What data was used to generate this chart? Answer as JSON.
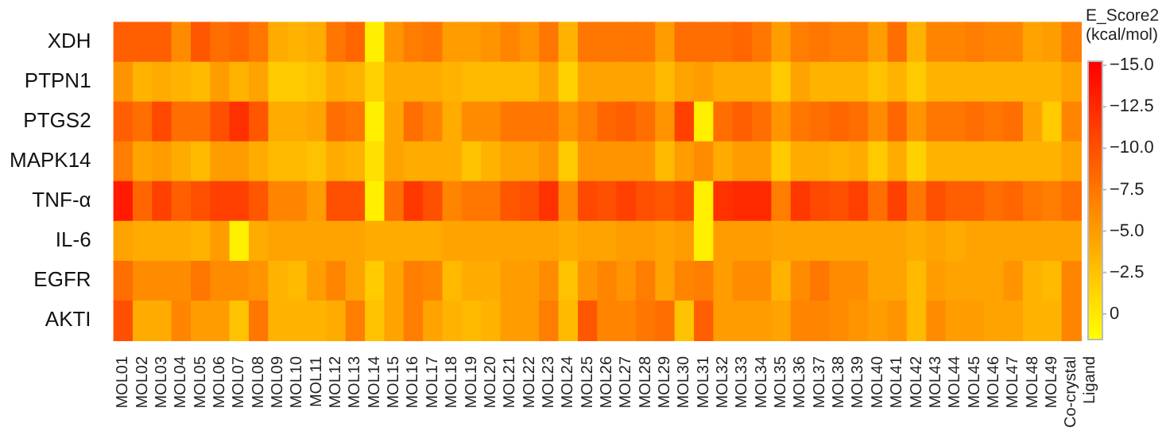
{
  "chart_data": {
    "type": "heatmap",
    "clabel": "E_Score2 (kcal/mol)",
    "categories": [
      "MOL01",
      "MOL02",
      "MOL03",
      "MOL04",
      "MOL05",
      "MOL06",
      "MOL07",
      "MOL08",
      "MOL09",
      "MOL10",
      "MOL11",
      "MOL12",
      "MOL13",
      "MOL14",
      "MOL15",
      "MOL16",
      "MOL17",
      "MOL18",
      "MOL19",
      "MOL20",
      "MOL21",
      "MOL22",
      "MOL23",
      "MOL24",
      "MOL25",
      "MOL26",
      "MOL27",
      "MOL28",
      "MOL29",
      "MOL30",
      "MOL31",
      "MOL32",
      "MOL33",
      "MOL34",
      "MOL35",
      "MOL36",
      "MOL37",
      "MOL38",
      "MOL39",
      "MOL40",
      "MOL41",
      "MOL42",
      "MOL43",
      "MOL44",
      "MOL45",
      "MOL46",
      "MOL47",
      "MOL48",
      "MOL49",
      "Co-crystal Ligand"
    ],
    "y_categories": [
      "XDH",
      "PTPN1",
      "PTGS2",
      "MAPK14",
      "TNF-α",
      "IL-6",
      "EGFR",
      "AKTI"
    ],
    "cells": [
      [
        -9,
        -9,
        -9,
        -6,
        -9.5,
        -8,
        -8.5,
        -7.5,
        -4,
        -3.5,
        -4,
        -7.5,
        -8.5,
        0.5,
        -5.5,
        -7,
        -7.5,
        -5,
        -5,
        -5.5,
        -6.5,
        -5.5,
        -7.5,
        -3.5,
        -7.5,
        -7.5,
        -7.5,
        -7.5,
        -5,
        -8,
        -8,
        -8,
        -8.5,
        -7.5,
        -5,
        -7,
        -7.5,
        -7,
        -7,
        -5,
        -8,
        -3.5,
        -6.5,
        -6.5,
        -7,
        -6.5,
        -6.5,
        -4.5,
        -5,
        -7
      ],
      [
        -5.5,
        -3.5,
        -4,
        -3.5,
        -3,
        -5,
        -3.5,
        -4.5,
        -2,
        -2,
        -2.5,
        -4,
        -3.5,
        -1.5,
        -4,
        -4,
        -4,
        -3.5,
        -3,
        -3,
        -3,
        -3,
        -4.5,
        -1.5,
        -4.5,
        -4.5,
        -4.5,
        -4.5,
        -3,
        -4.5,
        -5,
        -4,
        -4,
        -4,
        -2,
        -4.5,
        -3.5,
        -3.5,
        -3.5,
        -2.5,
        -3.5,
        -2,
        -3.5,
        -3.5,
        -3.5,
        -3.5,
        -3.5,
        -3.5,
        -3.5,
        -4.5
      ],
      [
        -9,
        -8,
        -10.5,
        -8,
        -8,
        -10,
        -12,
        -9.5,
        -4,
        -4,
        -4.5,
        -8,
        -7.5,
        0.5,
        -4.5,
        -8,
        -6.5,
        -4,
        -6,
        -6,
        -7.5,
        -7.5,
        -7.5,
        -5.5,
        -7,
        -8.5,
        -9,
        -8,
        -5.5,
        -11,
        0.5,
        -8,
        -9,
        -8,
        -5.5,
        -7.5,
        -8,
        -8.5,
        -8,
        -6,
        -8.5,
        -5.5,
        -7.5,
        -7.5,
        -8,
        -7.5,
        -8,
        -4.5,
        -2,
        -6.5
      ],
      [
        -7,
        -4.5,
        -5,
        -4,
        -3,
        -5,
        -5,
        -4,
        -3,
        -3,
        -2.5,
        -4,
        -3.5,
        -0.5,
        -4.5,
        -4,
        -4,
        -4,
        -2.5,
        -3.5,
        -4.5,
        -4.5,
        -5.5,
        -2,
        -5.5,
        -5.5,
        -5.5,
        -5.5,
        -3,
        -5,
        -6,
        -4,
        -5,
        -5,
        -2,
        -4,
        -4,
        -3.5,
        -4,
        -2,
        -4,
        -1.5,
        -3.5,
        -3.5,
        -3.5,
        -3.5,
        -3.5,
        -3.5,
        -3.5,
        -4.5
      ],
      [
        -13.5,
        -8.5,
        -11,
        -9,
        -10,
        -11,
        -11,
        -9.5,
        -6.5,
        -6.5,
        -5,
        -10,
        -10,
        0.5,
        -8,
        -11.5,
        -10,
        -6.5,
        -7.5,
        -7.5,
        -9.5,
        -10,
        -12,
        -6,
        -10.5,
        -10,
        -11,
        -10,
        -9.5,
        -10.5,
        0.5,
        -12,
        -12.5,
        -12.5,
        -7,
        -11.5,
        -10.5,
        -10,
        -11,
        -8,
        -11,
        -7.5,
        -10,
        -9,
        -9,
        -8,
        -8.5,
        -7.5,
        -7,
        -8
      ],
      [
        -4.5,
        -4,
        -4,
        -4,
        -3.5,
        -5,
        0.5,
        -4,
        -4.5,
        -4.5,
        -4.5,
        -4.5,
        -4.5,
        -4,
        -4,
        -4,
        -4,
        -4.5,
        -4.5,
        -4.5,
        -4.5,
        -4.5,
        -4.5,
        -4,
        -4.5,
        -4.5,
        -5,
        -5,
        -4.5,
        -5,
        0.5,
        -5,
        -5,
        -5,
        -4.5,
        -4.5,
        -4.5,
        -4.5,
        -4.5,
        -4.5,
        -4.5,
        -4,
        -4.5,
        -4,
        -4.5,
        -4.5,
        -4.5,
        -4.5,
        -4.5,
        -4.5
      ],
      [
        -8,
        -6,
        -6,
        -6,
        -7.5,
        -6,
        -6,
        -5.5,
        -3.5,
        -3,
        -5,
        -6.5,
        -4.5,
        -2,
        -4.5,
        -7,
        -6.5,
        -3,
        -4,
        -4,
        -5,
        -5,
        -6,
        -2.5,
        -5.5,
        -6.5,
        -5.5,
        -7,
        -4.5,
        -6.5,
        -7,
        -5,
        -6,
        -6,
        -3.5,
        -6,
        -7.5,
        -6,
        -6,
        -4.5,
        -4.5,
        -3,
        -5,
        -4.5,
        -4.5,
        -4.5,
        -5.5,
        -3.5,
        -3,
        -6.5
      ],
      [
        -10,
        -4,
        -4,
        -6.5,
        -5,
        -5,
        -2.5,
        -7.5,
        -3.5,
        -3.5,
        -3.5,
        -4,
        -7,
        -2.5,
        -4.5,
        -7,
        -4.5,
        -3.5,
        -3,
        -3.5,
        -5,
        -5,
        -7,
        -3,
        -9.5,
        -6.5,
        -6.5,
        -7.5,
        -8,
        -2.5,
        -9,
        -5,
        -5,
        -5,
        -4.5,
        -6.5,
        -6.5,
        -6,
        -5.5,
        -5,
        -5.5,
        -3,
        -6,
        -5,
        -5,
        -4.5,
        -4.5,
        -3.5,
        -3.5,
        -6.5
      ]
    ],
    "clim": [
      -15.2,
      1.5
    ],
    "cticks": [
      {
        "value": -15,
        "label": "−15.0"
      },
      {
        "value": -12.5,
        "label": "−12.5"
      },
      {
        "value": -10,
        "label": "−10.0"
      },
      {
        "value": -7.5,
        "label": "−7.5"
      },
      {
        "value": -5,
        "label": "−5.0"
      },
      {
        "value": -2.5,
        "label": "−2.5"
      },
      0
    ]
  }
}
